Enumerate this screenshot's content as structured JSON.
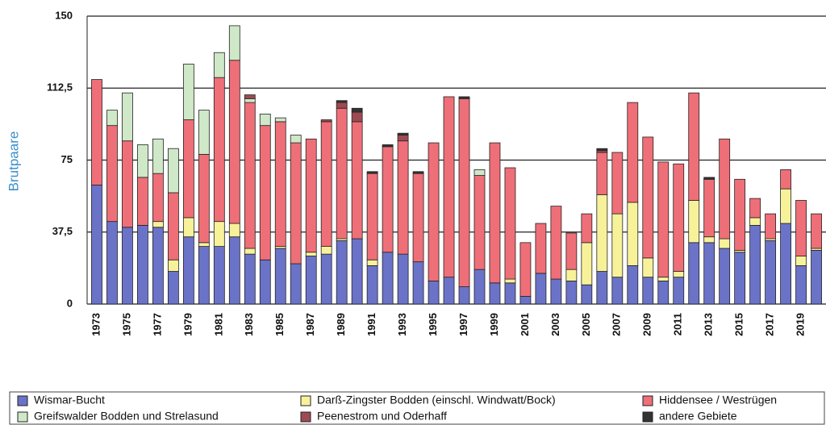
{
  "chart_data": {
    "type": "stacked_bar",
    "y_label": "Brutpaare",
    "categories": [
      "1973",
      null,
      "1975",
      null,
      "1977",
      null,
      "1979",
      null,
      "1981",
      null,
      "1983",
      null,
      "1985",
      null,
      "1987",
      null,
      "1989",
      null,
      "1991",
      null,
      "1993",
      null,
      "1995",
      null,
      "1997",
      null,
      "1999",
      null,
      "2001",
      null,
      "2003",
      null,
      "2005",
      null,
      "2007",
      null,
      "2009",
      null,
      "2011",
      null,
      "2013",
      null,
      "2015",
      null,
      "2017",
      null,
      "2019",
      null
    ],
    "series": [
      {
        "name": "Wismar-Bucht",
        "color": "#6b73c8",
        "values": [
          62,
          43,
          40,
          41,
          40,
          17,
          35,
          30,
          30,
          35,
          26,
          23,
          29,
          21,
          25,
          26,
          33,
          34,
          20,
          27,
          26,
          22,
          12,
          14,
          9,
          18,
          11,
          11,
          4,
          16,
          13,
          12,
          10,
          17,
          14,
          20,
          14,
          12,
          14,
          32,
          32,
          29,
          27,
          41,
          33,
          42,
          20,
          28
        ]
      },
      {
        "name": "Darß-Zingster Bodden (einschl. Windwatt/Bock)",
        "color": "#f7f29a",
        "values": [
          0,
          0,
          0,
          0,
          3,
          6,
          10,
          2,
          13,
          7,
          3,
          0,
          1,
          0,
          2,
          4,
          1,
          0,
          3,
          0,
          0,
          0,
          0,
          0,
          0,
          0,
          0,
          2,
          0,
          0,
          0,
          6,
          22,
          40,
          33,
          33,
          10,
          2,
          3,
          22,
          3,
          5,
          1,
          4,
          1,
          18,
          5,
          1
        ]
      },
      {
        "name": "Hiddensee / Westrügen",
        "color": "#ef6f78",
        "values": [
          55,
          50,
          45,
          25,
          25,
          35,
          51,
          46,
          75,
          85,
          76,
          70,
          65,
          63,
          59,
          65,
          68,
          61,
          45,
          55,
          59,
          46,
          72,
          94,
          98,
          49,
          73,
          58,
          28,
          26,
          38,
          19,
          15,
          22,
          32,
          52,
          63,
          60,
          56,
          56,
          30,
          52,
          37,
          10,
          13,
          10,
          29,
          18
        ]
      },
      {
        "name": "Greifswalder Bodden und Strelasund",
        "color": "#cfe8c8",
        "values": [
          0,
          8,
          25,
          17,
          18,
          23,
          29,
          23,
          13,
          18,
          2,
          6,
          2,
          4,
          0,
          0,
          0,
          0,
          0,
          0,
          0,
          0,
          0,
          0,
          0,
          3,
          0,
          0,
          0,
          0,
          0,
          0,
          0,
          0,
          0,
          0,
          0,
          0,
          0,
          0,
          0,
          0,
          0,
          0,
          0,
          0,
          0,
          0
        ]
      },
      {
        "name": "Peenestrom und Oderhaff",
        "color": "#9e4a52",
        "values": [
          0,
          0,
          0,
          0,
          0,
          0,
          0,
          0,
          0,
          0,
          2,
          0,
          0,
          0,
          0,
          1,
          3,
          5,
          0,
          0,
          3,
          0,
          0,
          0,
          0,
          0,
          0,
          0,
          0,
          0,
          0,
          0,
          0,
          1,
          0,
          0,
          0,
          0,
          0,
          0,
          0,
          0,
          0,
          0,
          0,
          0,
          0,
          0
        ]
      },
      {
        "name": "andere Gebiete",
        "color": "#333333",
        "values": [
          0,
          0,
          0,
          0,
          0,
          0,
          0,
          0,
          0,
          0,
          0,
          0,
          0,
          0,
          0,
          0,
          1,
          2,
          1,
          1,
          1,
          1,
          0,
          0,
          1,
          0,
          0,
          0,
          0,
          0,
          0,
          0,
          0,
          1,
          0,
          0,
          0,
          0,
          0,
          0,
          1,
          0,
          0,
          0,
          0,
          0,
          0,
          0
        ]
      }
    ],
    "ylim": [
      0,
      150
    ],
    "yticks": [
      0,
      {
        "value": 37.5,
        "label": "37,5"
      },
      75,
      {
        "value": 112.5,
        "label": "112,5"
      },
      150
    ],
    "grid": true
  }
}
